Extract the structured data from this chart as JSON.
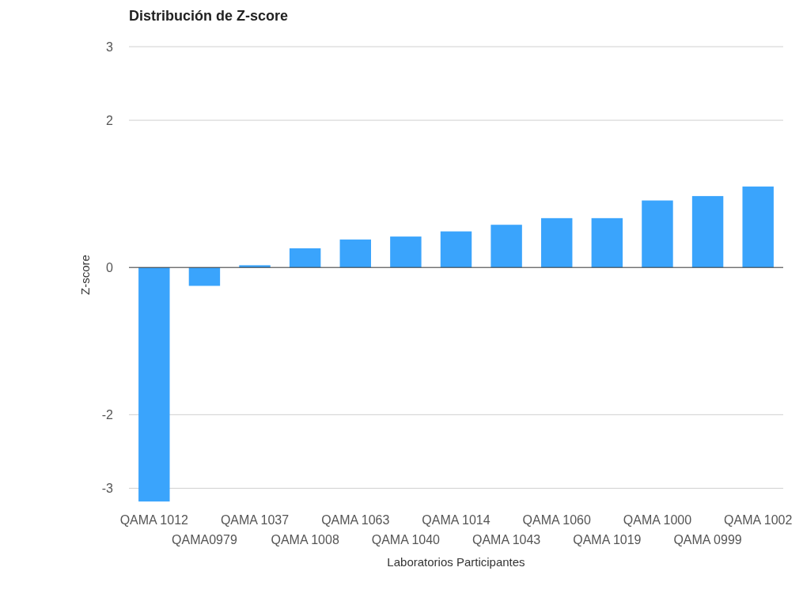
{
  "chart_data": {
    "type": "bar",
    "title": "Distribución de Z-score",
    "xlabel": "Laboratorios Participantes",
    "ylabel": "Z-score",
    "categories": [
      "QAMA 1012",
      "QAMA0979",
      "QAMA 1037",
      "QAMA 1008",
      "QAMA 1063",
      "QAMA 1040",
      "QAMA 1014",
      "QAMA 1043",
      "QAMA 1060",
      "QAMA 1019",
      "QAMA 1000",
      "QAMA 0999",
      "QAMA 1002"
    ],
    "values": [
      -3.18,
      -0.25,
      0.03,
      0.26,
      0.38,
      0.42,
      0.49,
      0.58,
      0.67,
      0.67,
      0.91,
      0.97,
      1.1
    ],
    "color": "#3aa4fc",
    "ylim": [
      -3.2,
      3
    ],
    "yticks": [
      -3,
      -2,
      0,
      2,
      3
    ],
    "grid": "y"
  }
}
